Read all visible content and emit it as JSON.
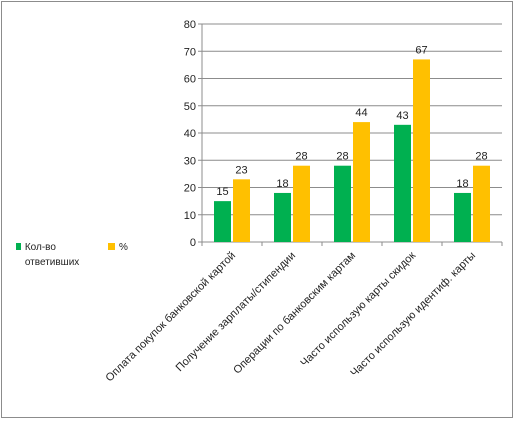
{
  "chart_data": {
    "type": "bar",
    "categories": [
      "Оплата покупок банковской картой",
      "Получение зарплаты/стипендии",
      "Операции по банковским картам",
      "Часто использую карты скидок",
      "Часто использую идентиф. карты"
    ],
    "series": [
      {
        "name": "Кол-во ответивших",
        "values": [
          15,
          18,
          28,
          43,
          18
        ],
        "color": "#00b050"
      },
      {
        "name": "%",
        "values": [
          23,
          28,
          44,
          67,
          28
        ],
        "color": "#ffc000"
      }
    ],
    "yticks": [
      "0",
      "10",
      "20",
      "30",
      "40",
      "50",
      "60",
      "70",
      "80"
    ],
    "ylim": [
      0,
      80
    ],
    "grid": true,
    "legend": "left"
  },
  "legend": {
    "item1": "Кол-во ответивших",
    "item2": "%"
  }
}
